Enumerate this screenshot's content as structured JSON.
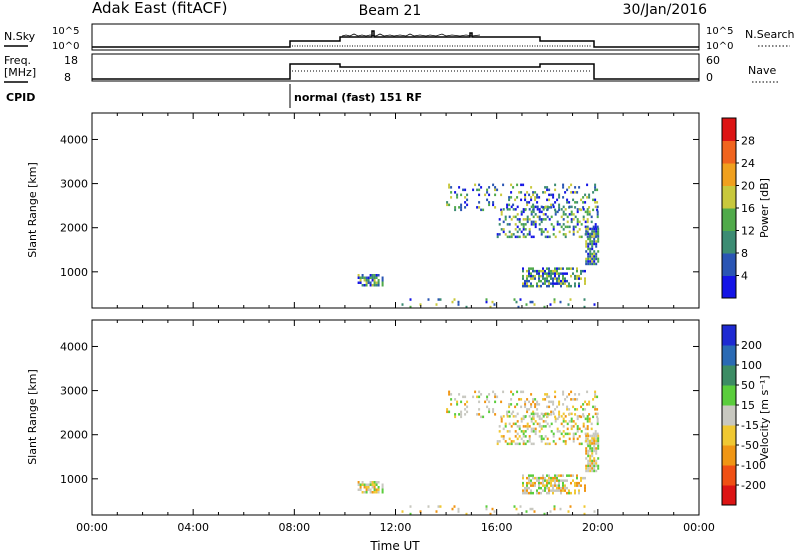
{
  "header": {
    "station": "Adak East (fitACF)",
    "beam": "Beam 21",
    "date": "30/Jan/2016"
  },
  "info_panels": {
    "nsky_label": "N.Sky",
    "nsky_ticks": [
      "10^5",
      "10^0"
    ],
    "nsearch_label": "N.Search",
    "nsearch_ticks": [
      "10^5",
      "10^0"
    ],
    "freq_label": [
      "Freq.",
      "[MHz]"
    ],
    "freq_ticks": [
      "18",
      "8"
    ],
    "nave_label": "Nave",
    "nave_ticks": [
      "60",
      "0"
    ],
    "cpid_label": "CPID",
    "cpid_text": "normal (fast) 151 RF"
  },
  "colors": {
    "axis": "#000000",
    "data_line": "#000000"
  },
  "chart_data": [
    {
      "type": "heatmap",
      "name": "power",
      "ylabel": "Slant Range [km]",
      "xlim": [
        0,
        24
      ],
      "ylim": [
        180,
        4600
      ],
      "yticks": [
        "1000",
        "2000",
        "3000",
        "4000"
      ],
      "colorbar_label": "Power [dB]",
      "colorbar_ticks": [
        "4",
        "8",
        "12",
        "16",
        "20",
        "24",
        "28"
      ],
      "colorbar_colors": [
        "#1414e6",
        "#2a55b4",
        "#3c8c73",
        "#50aa4a",
        "#c8c83c",
        "#f0a01e",
        "#f0641e",
        "#dc1414"
      ],
      "scatter_colors": [
        "#2a55b4",
        "#1414e6",
        "#3c8c73",
        "#50aa4a",
        "#c8c83c"
      ],
      "regions": [
        {
          "t": [
            10.5,
            11.5
          ],
          "r": [
            700,
            950
          ],
          "d": 0.7
        },
        {
          "t": [
            14,
            20
          ],
          "r": [
            2400,
            3000
          ],
          "d": 0.2
        },
        {
          "t": [
            16,
            20
          ],
          "r": [
            1800,
            2500
          ],
          "d": 0.35
        },
        {
          "t": [
            17,
            19.5
          ],
          "r": [
            700,
            1100
          ],
          "d": 0.6
        },
        {
          "t": [
            19.5,
            20
          ],
          "r": [
            1200,
            2000
          ],
          "d": 0.7
        },
        {
          "t": [
            12,
            20
          ],
          "r": [
            200,
            400
          ],
          "d": 0.08
        }
      ]
    },
    {
      "type": "heatmap",
      "name": "velocity",
      "xlabel": "Time UT",
      "ylabel": "Slant Range [km]",
      "xlim": [
        0,
        24
      ],
      "ylim": [
        180,
        4600
      ],
      "xticks": [
        "00:00",
        "04:00",
        "08:00",
        "12:00",
        "16:00",
        "20:00",
        "00:00"
      ],
      "yticks": [
        "1000",
        "2000",
        "3000",
        "4000"
      ],
      "colorbar_label": "Velocity [m s⁻¹]",
      "colorbar_ticks": [
        "200",
        "100",
        "50",
        "15",
        "-15",
        "-50",
        "-100",
        "-200"
      ],
      "colorbar_colors": [
        "#1e2ad2",
        "#2a6ab4",
        "#3c8c64",
        "#5acd3c",
        "#c8c8c0",
        "#f0c832",
        "#f09614",
        "#f05014",
        "#dc1414"
      ],
      "scatter_colors": [
        "#c8c8c0",
        "#c8c8c0",
        "#f0c832",
        "#5acd3c",
        "#f09614"
      ],
      "regions": [
        {
          "t": [
            10.5,
            11.5
          ],
          "r": [
            700,
            950
          ],
          "d": 0.7
        },
        {
          "t": [
            14,
            20
          ],
          "r": [
            2400,
            3000
          ],
          "d": 0.2
        },
        {
          "t": [
            16,
            20
          ],
          "r": [
            1800,
            2500
          ],
          "d": 0.35
        },
        {
          "t": [
            17,
            19.5
          ],
          "r": [
            700,
            1100
          ],
          "d": 0.6
        },
        {
          "t": [
            19.5,
            20
          ],
          "r": [
            1200,
            2000
          ],
          "d": 0.7
        },
        {
          "t": [
            12,
            20
          ],
          "r": [
            200,
            400
          ],
          "d": 0.08
        }
      ]
    }
  ]
}
